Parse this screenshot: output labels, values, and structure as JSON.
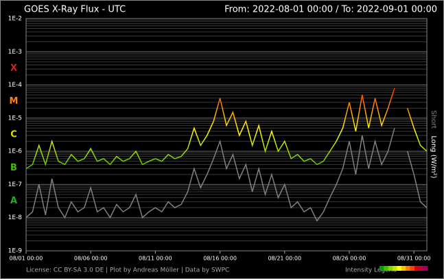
{
  "chart_data": {
    "type": "line",
    "title": "GOES X-Ray Flux - UTC",
    "range_label": "From: 2022-08-01 00:00  /  To: 2022-09-01 00:00",
    "footer": "License: CC BY-SA 3.0 DE | Plot by Andreas Möller | Data by SWPC",
    "intensity_legend": "Intensity Legend",
    "intensity_colors": [
      "#00a000",
      "#40c000",
      "#80d800",
      "#c0e800",
      "#ffff00",
      "#ffc000",
      "#ff8000",
      "#ff4000",
      "#e00000",
      "#c00040",
      "#a00060"
    ],
    "flare_classes": [
      {
        "label": "X",
        "color": "#d02020"
      },
      {
        "label": "M",
        "color": "#ff7f00"
      },
      {
        "label": "C",
        "color": "#e0e000"
      },
      {
        "label": "B",
        "color": "#40c000"
      },
      {
        "label": "A",
        "color": "#20b020"
      }
    ],
    "log_scale": true,
    "grid": true,
    "ylim": [
      1e-09,
      0.01
    ],
    "yticks": [
      {
        "value": 0.01,
        "label": "1E-2"
      },
      {
        "value": 0.001,
        "label": "1E-3"
      },
      {
        "value": 0.0001,
        "label": "1E-4"
      },
      {
        "value": 1e-05,
        "label": "1E-5"
      },
      {
        "value": 1e-06,
        "label": "1E-6"
      },
      {
        "value": 1e-07,
        "label": "1E-7"
      },
      {
        "value": 1e-08,
        "label": "1E-8"
      },
      {
        "value": 1e-09,
        "label": "1E-9"
      }
    ],
    "xlim": [
      "08/01 00:00",
      "09/01 00:00"
    ],
    "xticks": [
      "08/01 00:00",
      "08/06 00:00",
      "08/11 00:00",
      "08/16 00:00",
      "08/21 00:00",
      "08/26 00:00",
      "08/31 00:00"
    ],
    "x": [
      "08/01 00:00",
      "08/01 12:00",
      "08/02 00:00",
      "08/02 12:00",
      "08/03 00:00",
      "08/03 12:00",
      "08/04 00:00",
      "08/04 12:00",
      "08/05 00:00",
      "08/05 12:00",
      "08/06 00:00",
      "08/06 12:00",
      "08/07 00:00",
      "08/07 12:00",
      "08/08 00:00",
      "08/08 12:00",
      "08/09 00:00",
      "08/09 12:00",
      "08/10 00:00",
      "08/10 12:00",
      "08/11 00:00",
      "08/11 12:00",
      "08/12 00:00",
      "08/12 12:00",
      "08/13 00:00",
      "08/13 12:00",
      "08/14 00:00",
      "08/14 12:00",
      "08/15 00:00",
      "08/15 12:00",
      "08/16 00:00",
      "08/16 12:00",
      "08/17 00:00",
      "08/17 12:00",
      "08/18 00:00",
      "08/18 12:00",
      "08/19 00:00",
      "08/19 12:00",
      "08/20 00:00",
      "08/20 12:00",
      "08/21 00:00",
      "08/21 12:00",
      "08/22 00:00",
      "08/22 12:00",
      "08/23 00:00",
      "08/23 12:00",
      "08/24 00:00",
      "08/24 12:00",
      "08/25 00:00",
      "08/25 12:00",
      "08/26 00:00",
      "08/26 12:00",
      "08/27 00:00",
      "08/27 12:00",
      "08/28 00:00",
      "08/28 12:00",
      "08/29 00:00",
      "08/29 12:00",
      "08/30 00:00",
      "08/30 12:00",
      "08/31 00:00",
      "08/31 12:00",
      "09/01 00:00"
    ],
    "series": [
      {
        "name": "Short",
        "color": "#808080",
        "values": [
          1e-08,
          1.5e-08,
          1e-07,
          1.2e-08,
          1.5e-07,
          2e-08,
          1e-08,
          3e-08,
          1.5e-08,
          2e-08,
          8e-08,
          1.5e-08,
          2e-08,
          1e-08,
          2.5e-08,
          1.5e-08,
          2e-08,
          5e-08,
          1e-08,
          1.5e-08,
          2e-08,
          1.5e-08,
          3e-08,
          2e-08,
          2.5e-08,
          6e-08,
          3e-07,
          8e-08,
          2e-07,
          6e-07,
          2e-06,
          3e-07,
          8e-07,
          1.5e-07,
          4e-07,
          6e-08,
          3e-07,
          5e-08,
          2e-07,
          4e-08,
          1e-07,
          2e-08,
          3e-08,
          1.5e-08,
          2e-08,
          8e-09,
          1.5e-08,
          4e-08,
          1e-07,
          3e-07,
          2e-06,
          2e-07,
          3e-06,
          3e-07,
          2e-06,
          4e-07,
          1e-06,
          5e-06,
          null,
          1e-06,
          2e-07,
          3e-08,
          2e-08
        ]
      },
      {
        "name": "Long (W/m²)",
        "color": "#ffffff",
        "values": [
          3e-07,
          4e-07,
          1.5e-06,
          4e-07,
          2e-06,
          5e-07,
          4e-07,
          8e-07,
          5e-07,
          6e-07,
          1.2e-06,
          5e-07,
          6e-07,
          4e-07,
          7e-07,
          5e-07,
          6e-07,
          1e-06,
          4e-07,
          5e-07,
          6e-07,
          5e-07,
          8e-07,
          6e-07,
          7e-07,
          1.2e-06,
          5e-06,
          1.5e-06,
          3e-06,
          8e-06,
          4e-05,
          6e-06,
          1.5e-05,
          3e-06,
          8e-06,
          1.5e-06,
          6e-06,
          1e-06,
          4e-06,
          1e-06,
          2e-06,
          6e-07,
          8e-07,
          5e-07,
          6e-07,
          4e-07,
          5e-07,
          1e-06,
          2e-06,
          5e-06,
          3e-05,
          4e-06,
          5e-05,
          5e-06,
          4e-05,
          6e-06,
          2e-05,
          8e-05,
          null,
          2e-05,
          5e-06,
          1.5e-06,
          1e-06
        ]
      }
    ]
  }
}
